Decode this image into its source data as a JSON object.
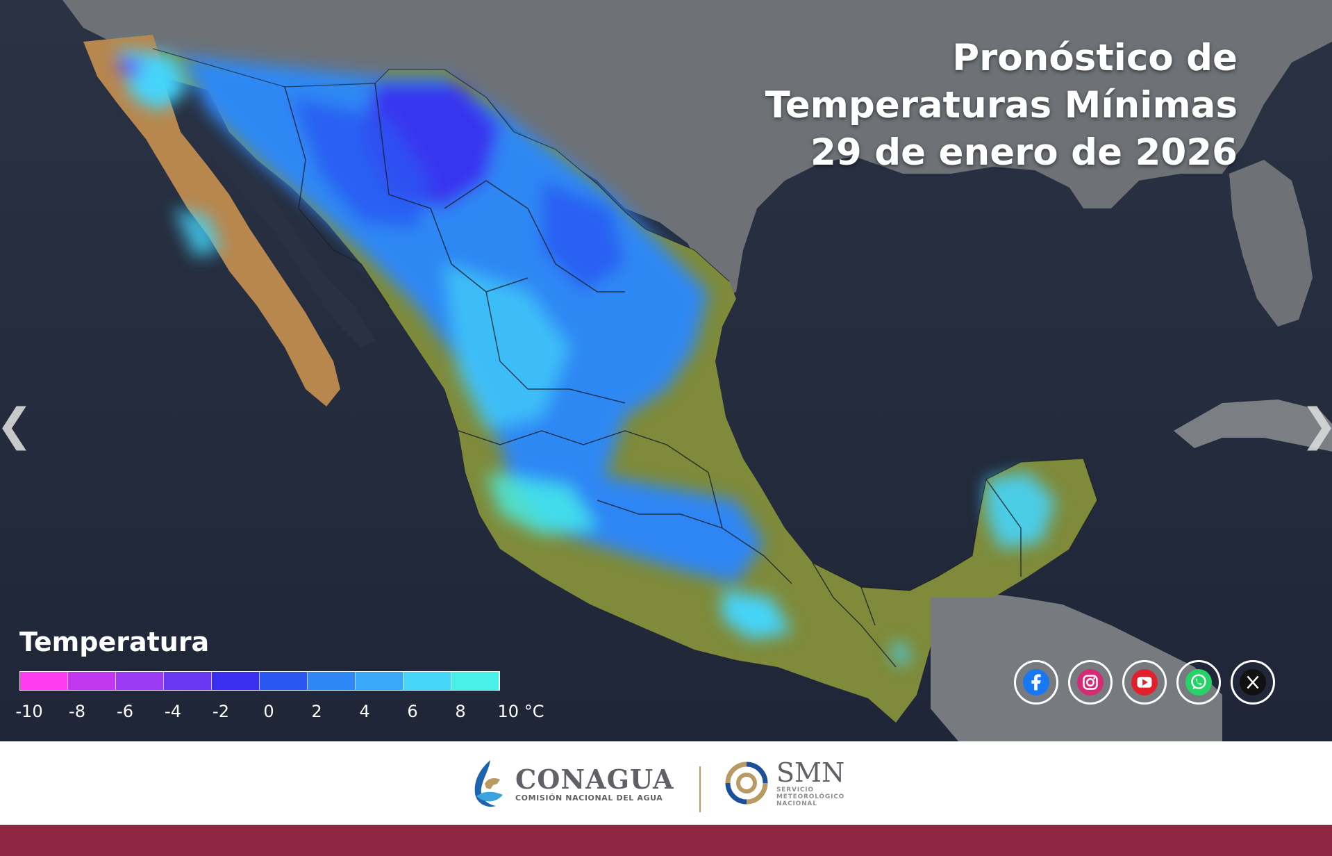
{
  "title": {
    "line1": "Pronóstico de",
    "line2": "Temperaturas Mínimas",
    "line3": "29 de enero de 2026"
  },
  "legend": {
    "title": "Temperatura",
    "colors": [
      "#ff3cf0",
      "#c238f0",
      "#9a3af2",
      "#6b38f2",
      "#3a2ef0",
      "#2a56f2",
      "#2f86f5",
      "#3aa8f8",
      "#45d4fa",
      "#48f0e8"
    ],
    "ticks": [
      "-10",
      "-8",
      "-6",
      "-4",
      "-2",
      "0",
      "2",
      "4",
      "6",
      "8",
      "10 °C"
    ]
  },
  "nav": {
    "prev": "❮",
    "next": "❯"
  },
  "social": [
    {
      "icon": "facebook-icon",
      "color": "#1877f2"
    },
    {
      "icon": "instagram-icon",
      "color": "#d62976"
    },
    {
      "icon": "youtube-icon",
      "color": "#e1202b"
    },
    {
      "icon": "whatsapp-icon",
      "color": "#25d366"
    },
    {
      "icon": "x-icon",
      "color": "#111111"
    }
  ],
  "footer": {
    "conagua_name": "CONAGUA",
    "conagua_sub": "COMISIÓN NACIONAL DEL AGUA",
    "smn_name": "SMN",
    "smn_sub": [
      "SERVICIO",
      "METEOROLÓGICO",
      "NACIONAL"
    ]
  },
  "colors": {
    "ocean": "#232b3d",
    "land_usa": "#6b6f74",
    "mexico_warm": "#7c8a3a",
    "baja_warm": "#b88a4d",
    "bottom_bar": "#8e2642"
  }
}
